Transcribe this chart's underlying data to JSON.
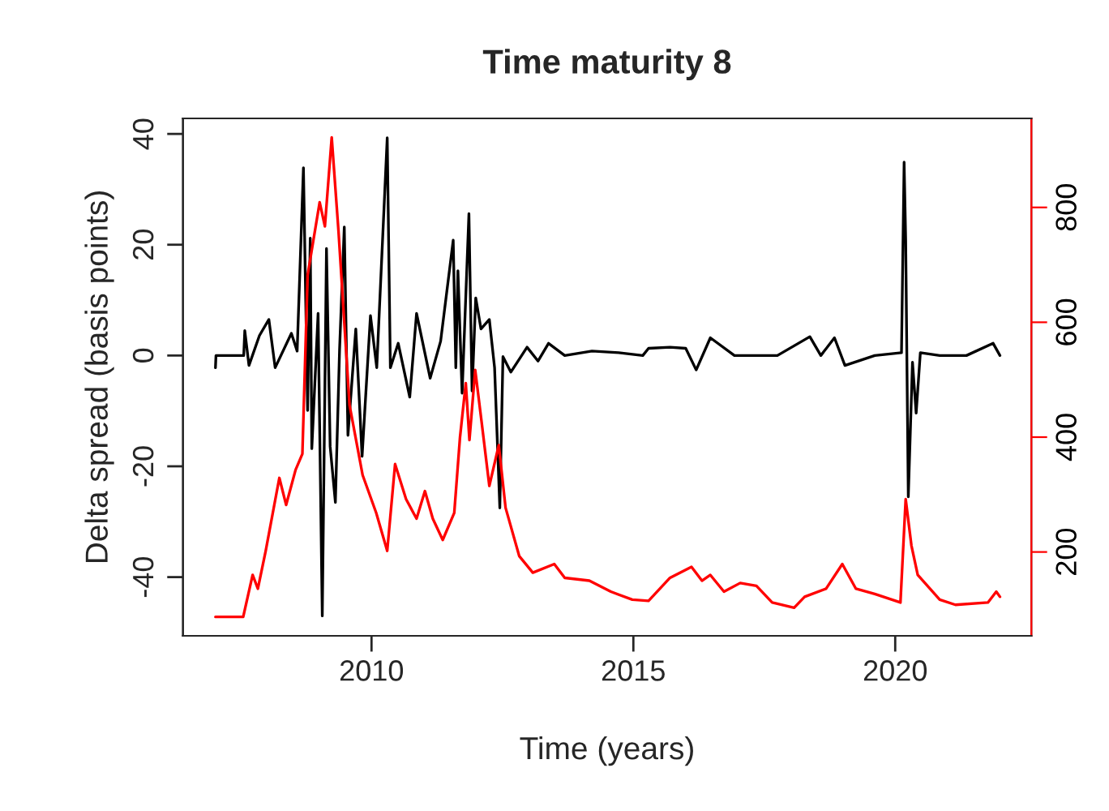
{
  "chart_data": {
    "type": "line",
    "title": "Time maturity 8",
    "xlabel": "Time (years)",
    "ylabel": "Delta spread (basis points)",
    "xlim": [
      2006.4,
      2022.6
    ],
    "xticks": [
      2010,
      2015,
      2020
    ],
    "ylim": [
      -50.6,
      42.8
    ],
    "yticks": [
      -40,
      -20,
      0,
      20,
      40
    ],
    "y2lim": [
      54,
      955
    ],
    "y2ticks": [
      200,
      400,
      600,
      800
    ],
    "grid": false,
    "legend": false,
    "series": [
      {
        "color": "#000000",
        "x": [
          2007.02,
          2007.03,
          2007.56,
          2007.58,
          2007.66,
          2007.86,
          2008.04,
          2008.16,
          2008.47,
          2008.58,
          2008.7,
          2008.78,
          2008.83,
          2008.86,
          2008.98,
          2009.06,
          2009.14,
          2009.21,
          2009.31,
          2009.39,
          2009.48,
          2009.55,
          2009.7,
          2009.82,
          2009.98,
          2010.1,
          2010.3,
          2010.36,
          2010.51,
          2010.73,
          2010.86,
          2011.12,
          2011.32,
          2011.56,
          2011.61,
          2011.65,
          2011.73,
          2011.86,
          2011.92,
          2011.99,
          2012.09,
          2012.25,
          2012.35,
          2012.45,
          2012.51,
          2012.66,
          2012.97,
          2013.18,
          2013.38,
          2013.69,
          2014.21,
          2014.72,
          2015.18,
          2015.29,
          2015.7,
          2016.0,
          2016.2,
          2016.47,
          2016.93,
          2017.75,
          2018.37,
          2018.58,
          2018.84,
          2019.04,
          2019.61,
          2020.12,
          2020.17,
          2020.2,
          2020.25,
          2020.33,
          2020.4,
          2020.48,
          2020.85,
          2021.36,
          2021.87,
          2022.0
        ],
        "values": [
          -2.2,
          0,
          0,
          4.5,
          -1.8,
          3.6,
          6.5,
          -2.2,
          4,
          0.8,
          33.9,
          -9.9,
          21.2,
          -16.8,
          7.6,
          -47,
          19.3,
          -16.4,
          -26.5,
          1.1,
          23.2,
          -14.4,
          4.8,
          -18.2,
          7.2,
          -2.2,
          39.3,
          -2.2,
          2.2,
          -7.5,
          7.6,
          -4.1,
          2.6,
          20.8,
          -2.2,
          15.3,
          -6.8,
          25.6,
          -6.4,
          10.4,
          4.8,
          6.5,
          -2.2,
          -27.5,
          -0.2,
          -3,
          1.5,
          -1,
          2.2,
          0,
          0.8,
          0.5,
          0,
          1.3,
          1.5,
          1.3,
          -2.6,
          3.2,
          0,
          0,
          3.4,
          0,
          3.2,
          -1.8,
          0,
          0.5,
          34.9,
          20.8,
          -25.5,
          -1.2,
          -10.4,
          0.5,
          0,
          0,
          2.2,
          0
        ]
      },
      {
        "color": "#ff0000",
        "axis": "y2",
        "x": [
          2007.02,
          2007.55,
          2007.73,
          2007.83,
          2007.98,
          2008.24,
          2008.37,
          2008.55,
          2008.68,
          2008.78,
          2009.01,
          2009.11,
          2009.24,
          2009.37,
          2009.58,
          2009.83,
          2010.09,
          2010.3,
          2010.45,
          2010.66,
          2010.86,
          2011.02,
          2011.17,
          2011.36,
          2011.58,
          2011.69,
          2011.8,
          2011.87,
          2011.98,
          2012.1,
          2012.25,
          2012.43,
          2012.56,
          2012.82,
          2013.08,
          2013.49,
          2013.69,
          2014.16,
          2014.57,
          2014.98,
          2015.29,
          2015.7,
          2016.11,
          2016.31,
          2016.47,
          2016.73,
          2017.04,
          2017.35,
          2017.65,
          2018.07,
          2018.27,
          2018.68,
          2018.99,
          2019.25,
          2019.61,
          2020.1,
          2020.2,
          2020.31,
          2020.43,
          2020.85,
          2021.15,
          2021.77,
          2021.93,
          2022.0
        ],
        "values": [
          87,
          87,
          160,
          136,
          202,
          329,
          282,
          343,
          371,
          682,
          809,
          767,
          922,
          758,
          456,
          334,
          268,
          202,
          353,
          292,
          258,
          306,
          258,
          221,
          268,
          400,
          494,
          395,
          517,
          428,
          315,
          386,
          277,
          193,
          164,
          179,
          155,
          150,
          131,
          117,
          115,
          155,
          174,
          150,
          160,
          131,
          146,
          141,
          112,
          103,
          122,
          136,
          179,
          136,
          127,
          112,
          292,
          211,
          160,
          117,
          108,
          112,
          131,
          122
        ]
      }
    ]
  }
}
